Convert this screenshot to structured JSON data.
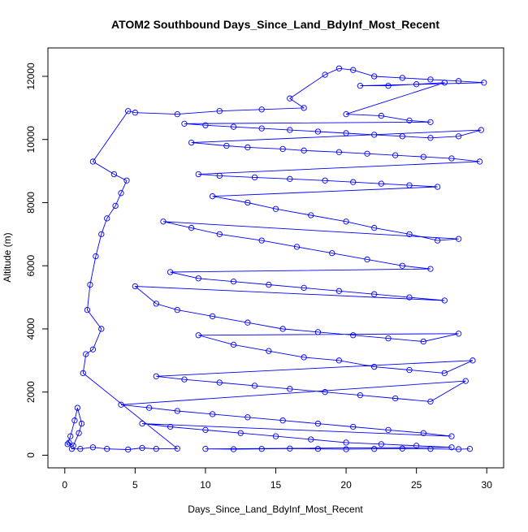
{
  "chart_data": {
    "type": "scatter",
    "title": "ATOM2 Southbound Days_Since_Land_BdyInf_Most_Recent",
    "xlabel": "Days_Since_Land_BdyInf_Most_Recent",
    "ylabel": "Altitude (m)",
    "xlim": [
      -1.2,
      31.2
    ],
    "ylim": [
      -400,
      12900
    ],
    "xticks": [
      0,
      5,
      10,
      15,
      20,
      25,
      30
    ],
    "yticks": [
      0,
      2000,
      4000,
      6000,
      8000,
      10000,
      12000
    ],
    "grid": false,
    "legend": "none",
    "marker": "open-circle",
    "connected": true,
    "color": "#0000ff",
    "series": [
      {
        "values_note": "Representative sample of the densely overplotted trajectory traces; values estimated from axes.",
        "points": [
          [
            0.2,
            350
          ],
          [
            0.4,
            600
          ],
          [
            0.7,
            1100
          ],
          [
            0.9,
            1500
          ],
          [
            1.2,
            1000
          ],
          [
            1.0,
            700
          ],
          [
            0.6,
            300
          ],
          [
            0.3,
            400
          ],
          [
            0.5,
            200
          ],
          [
            1.1,
            200
          ],
          [
            2.0,
            250
          ],
          [
            3.0,
            200
          ],
          [
            4.5,
            180
          ],
          [
            5.5,
            230
          ],
          [
            6.5,
            200
          ],
          [
            8.0,
            210
          ],
          [
            1.3,
            2600
          ],
          [
            1.5,
            3200
          ],
          [
            2.0,
            3350
          ],
          [
            2.6,
            4000
          ],
          [
            1.6,
            4600
          ],
          [
            1.8,
            5400
          ],
          [
            2.2,
            6300
          ],
          [
            2.6,
            7000
          ],
          [
            3.0,
            7500
          ],
          [
            3.6,
            7900
          ],
          [
            4.0,
            8300
          ],
          [
            4.4,
            8700
          ],
          [
            3.5,
            8900
          ],
          [
            2.0,
            9300
          ],
          [
            4.5,
            10900
          ],
          [
            5.0,
            10850
          ],
          [
            8.0,
            10800
          ],
          [
            11.0,
            10900
          ],
          [
            14.0,
            10950
          ],
          [
            17.0,
            11000
          ],
          [
            16.0,
            11300
          ],
          [
            18.5,
            12050
          ],
          [
            19.5,
            12250
          ],
          [
            20.5,
            12200
          ],
          [
            22.0,
            12000
          ],
          [
            24.0,
            11950
          ],
          [
            26.0,
            11900
          ],
          [
            28.0,
            11850
          ],
          [
            29.8,
            11800
          ],
          [
            21.0,
            11700
          ],
          [
            23.0,
            11700
          ],
          [
            25.0,
            11750
          ],
          [
            27.0,
            11800
          ],
          [
            20.0,
            10800
          ],
          [
            22.5,
            10750
          ],
          [
            24.5,
            10600
          ],
          [
            26.0,
            10550
          ],
          [
            8.5,
            10500
          ],
          [
            10.0,
            10450
          ],
          [
            12.0,
            10400
          ],
          [
            14.0,
            10350
          ],
          [
            16.0,
            10300
          ],
          [
            18.0,
            10250
          ],
          [
            20.0,
            10200
          ],
          [
            22.0,
            10150
          ],
          [
            24.0,
            10100
          ],
          [
            26.0,
            10050
          ],
          [
            28.0,
            10100
          ],
          [
            29.6,
            10300
          ],
          [
            9.0,
            9900
          ],
          [
            11.5,
            9800
          ],
          [
            13.0,
            9750
          ],
          [
            15.5,
            9700
          ],
          [
            17.0,
            9650
          ],
          [
            19.5,
            9600
          ],
          [
            21.5,
            9550
          ],
          [
            23.5,
            9500
          ],
          [
            25.5,
            9450
          ],
          [
            27.5,
            9400
          ],
          [
            29.5,
            9300
          ],
          [
            9.5,
            8900
          ],
          [
            11.0,
            8850
          ],
          [
            13.5,
            8800
          ],
          [
            16.0,
            8750
          ],
          [
            18.5,
            8700
          ],
          [
            20.5,
            8650
          ],
          [
            22.5,
            8600
          ],
          [
            24.5,
            8550
          ],
          [
            26.5,
            8500
          ],
          [
            10.5,
            8200
          ],
          [
            13.0,
            8000
          ],
          [
            15.0,
            7800
          ],
          [
            17.5,
            7600
          ],
          [
            20.0,
            7400
          ],
          [
            22.0,
            7200
          ],
          [
            24.5,
            7000
          ],
          [
            26.5,
            6800
          ],
          [
            28.0,
            6850
          ],
          [
            7.0,
            7400
          ],
          [
            9.0,
            7200
          ],
          [
            11.0,
            7000
          ],
          [
            14.0,
            6800
          ],
          [
            16.5,
            6600
          ],
          [
            19.0,
            6400
          ],
          [
            21.5,
            6200
          ],
          [
            24.0,
            6000
          ],
          [
            26.0,
            5900
          ],
          [
            7.5,
            5800
          ],
          [
            9.5,
            5600
          ],
          [
            12.0,
            5500
          ],
          [
            14.5,
            5400
          ],
          [
            17.0,
            5300
          ],
          [
            19.5,
            5200
          ],
          [
            22.0,
            5100
          ],
          [
            24.5,
            5000
          ],
          [
            27.0,
            4900
          ],
          [
            5.0,
            5350
          ],
          [
            6.5,
            4800
          ],
          [
            8.0,
            4600
          ],
          [
            10.5,
            4400
          ],
          [
            13.0,
            4200
          ],
          [
            15.5,
            4000
          ],
          [
            18.0,
            3900
          ],
          [
            20.5,
            3800
          ],
          [
            23.0,
            3700
          ],
          [
            25.5,
            3600
          ],
          [
            28.0,
            3850
          ],
          [
            9.5,
            3800
          ],
          [
            12.0,
            3500
          ],
          [
            14.5,
            3300
          ],
          [
            17.0,
            3100
          ],
          [
            19.5,
            3000
          ],
          [
            22.0,
            2800
          ],
          [
            24.5,
            2700
          ],
          [
            27.0,
            2600
          ],
          [
            29.0,
            3000
          ],
          [
            6.5,
            2500
          ],
          [
            8.5,
            2400
          ],
          [
            11.0,
            2300
          ],
          [
            13.5,
            2200
          ],
          [
            16.0,
            2100
          ],
          [
            18.5,
            2000
          ],
          [
            21.0,
            1900
          ],
          [
            23.5,
            1800
          ],
          [
            26.0,
            1700
          ],
          [
            28.5,
            2350
          ],
          [
            4.0,
            1600
          ],
          [
            6.0,
            1500
          ],
          [
            8.0,
            1400
          ],
          [
            10.5,
            1300
          ],
          [
            13.0,
            1200
          ],
          [
            15.5,
            1100
          ],
          [
            18.0,
            1000
          ],
          [
            20.5,
            900
          ],
          [
            23.0,
            800
          ],
          [
            25.5,
            700
          ],
          [
            27.5,
            600
          ],
          [
            5.5,
            1000
          ],
          [
            7.5,
            900
          ],
          [
            10.0,
            800
          ],
          [
            12.5,
            700
          ],
          [
            15.0,
            600
          ],
          [
            17.5,
            500
          ],
          [
            20.0,
            400
          ],
          [
            22.5,
            350
          ],
          [
            25.0,
            300
          ],
          [
            27.5,
            250
          ],
          [
            10.0,
            200
          ],
          [
            12.0,
            190
          ],
          [
            14.0,
            200
          ],
          [
            16.0,
            210
          ],
          [
            18.0,
            200
          ],
          [
            20.0,
            190
          ],
          [
            22.0,
            200
          ],
          [
            24.0,
            210
          ],
          [
            26.0,
            200
          ],
          [
            28.0,
            190
          ],
          [
            28.8,
            200
          ]
        ]
      }
    ]
  }
}
